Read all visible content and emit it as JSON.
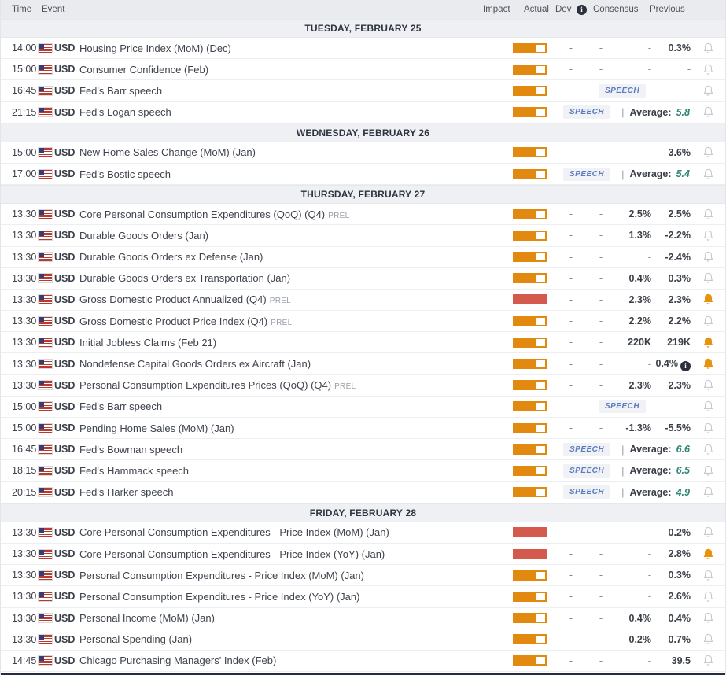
{
  "header": {
    "columns": {
      "time": "Time",
      "event": "Event",
      "impact": "Impact",
      "actual": "Actual",
      "dev": "Dev",
      "consensus": "Consensus",
      "previous": "Previous"
    },
    "dev_info_icon": "i"
  },
  "labels": {
    "currency": "USD",
    "speech": "SPEECH",
    "average": "Average:",
    "prel": "PREL",
    "pipe": "|",
    "dash": "-"
  },
  "colors": {
    "impact_medium": "#e2890f",
    "impact_high": "#d35a4d",
    "bell_inactive": "#c6cad0",
    "bell_active": "#e8930e",
    "speech_text": "#5b7cc0",
    "average_value": "#2f8577",
    "section_bg": "#eef0f3",
    "header_bg": "#e9ebee"
  },
  "sections": [
    {
      "title": "TUESDAY, FEBRUARY 25",
      "rows": [
        {
          "time": "14:00",
          "event": "Housing Price Index (MoM) (Dec)",
          "impact": "medium",
          "type": "values",
          "actual": "-",
          "dev": "-",
          "consensus": "-",
          "previous": "0.3%",
          "bell": "gray"
        },
        {
          "time": "15:00",
          "event": "Consumer Confidence (Feb)",
          "impact": "medium",
          "type": "values",
          "actual": "-",
          "dev": "-",
          "consensus": "-",
          "previous": "-",
          "bell": "gray"
        },
        {
          "time": "16:45",
          "event": "Fed's Barr speech",
          "impact": "medium",
          "type": "speech",
          "bell": "gray"
        },
        {
          "time": "21:15",
          "event": "Fed's Logan speech",
          "impact": "medium",
          "type": "speech_avg",
          "average": "5.8",
          "bell": "gray"
        }
      ]
    },
    {
      "title": "WEDNESDAY, FEBRUARY 26",
      "rows": [
        {
          "time": "15:00",
          "event": "New Home Sales Change (MoM) (Jan)",
          "impact": "medium",
          "type": "values",
          "actual": "-",
          "dev": "-",
          "consensus": "-",
          "previous": "3.6%",
          "bell": "gray"
        },
        {
          "time": "17:00",
          "event": "Fed's Bostic speech",
          "impact": "medium",
          "type": "speech_avg",
          "average": "5.4",
          "bell": "gray"
        }
      ]
    },
    {
      "title": "THURSDAY, FEBRUARY 27",
      "rows": [
        {
          "time": "13:30",
          "event": "Core Personal Consumption Expenditures (QoQ) (Q4)",
          "suffix": "PREL",
          "impact": "medium",
          "type": "values",
          "actual": "-",
          "dev": "-",
          "consensus": "2.5%",
          "previous": "2.5%",
          "bell": "gray"
        },
        {
          "time": "13:30",
          "event": "Durable Goods Orders (Jan)",
          "impact": "medium",
          "type": "values",
          "actual": "-",
          "dev": "-",
          "consensus": "1.3%",
          "previous": "-2.2%",
          "bell": "gray"
        },
        {
          "time": "13:30",
          "event": "Durable Goods Orders ex Defense (Jan)",
          "impact": "medium",
          "type": "values",
          "actual": "-",
          "dev": "-",
          "consensus": "-",
          "previous": "-2.4%",
          "bell": "gray"
        },
        {
          "time": "13:30",
          "event": "Durable Goods Orders ex Transportation (Jan)",
          "impact": "medium",
          "type": "values",
          "actual": "-",
          "dev": "-",
          "consensus": "0.4%",
          "previous": "0.3%",
          "bell": "gray"
        },
        {
          "time": "13:30",
          "event": "Gross Domestic Product Annualized (Q4)",
          "suffix": "PREL",
          "impact": "high",
          "type": "values",
          "actual": "-",
          "dev": "-",
          "consensus": "2.3%",
          "previous": "2.3%",
          "bell": "orange"
        },
        {
          "time": "13:30",
          "event": "Gross Domestic Product Price Index (Q4)",
          "suffix": "PREL",
          "impact": "medium",
          "type": "values",
          "actual": "-",
          "dev": "-",
          "consensus": "2.2%",
          "previous": "2.2%",
          "bell": "gray"
        },
        {
          "time": "13:30",
          "event": "Initial Jobless Claims (Feb 21)",
          "impact": "medium",
          "type": "values",
          "actual": "-",
          "dev": "-",
          "consensus": "220K",
          "previous": "219K",
          "bell": "orange"
        },
        {
          "time": "13:30",
          "event": "Nondefense Capital Goods Orders ex Aircraft (Jan)",
          "impact": "medium",
          "type": "values",
          "actual": "-",
          "dev": "-",
          "consensus": "-",
          "previous": "0.4%",
          "previous_info": true,
          "bell": "orange"
        },
        {
          "time": "13:30",
          "event": "Personal Consumption Expenditures Prices (QoQ) (Q4)",
          "suffix": "PREL",
          "impact": "medium",
          "type": "values",
          "actual": "-",
          "dev": "-",
          "consensus": "2.3%",
          "previous": "2.3%",
          "bell": "gray"
        },
        {
          "time": "15:00",
          "event": "Fed's Barr speech",
          "impact": "medium",
          "type": "speech",
          "bell": "gray"
        },
        {
          "time": "15:00",
          "event": "Pending Home Sales (MoM) (Jan)",
          "impact": "medium",
          "type": "values",
          "actual": "-",
          "dev": "-",
          "consensus": "-1.3%",
          "previous": "-5.5%",
          "bell": "gray"
        },
        {
          "time": "16:45",
          "event": "Fed's Bowman speech",
          "impact": "medium",
          "type": "speech_avg",
          "average": "6.6",
          "bell": "gray"
        },
        {
          "time": "18:15",
          "event": "Fed's Hammack speech",
          "impact": "medium",
          "type": "speech_avg",
          "average": "6.5",
          "bell": "gray"
        },
        {
          "time": "20:15",
          "event": "Fed's Harker speech",
          "impact": "medium",
          "type": "speech_avg",
          "average": "4.9",
          "bell": "gray"
        }
      ]
    },
    {
      "title": "FRIDAY, FEBRUARY 28",
      "rows": [
        {
          "time": "13:30",
          "event": "Core Personal Consumption Expenditures - Price Index (MoM) (Jan)",
          "impact": "high",
          "type": "values",
          "actual": "-",
          "dev": "-",
          "consensus": "-",
          "previous": "0.2%",
          "bell": "gray"
        },
        {
          "time": "13:30",
          "event": "Core Personal Consumption Expenditures - Price Index (YoY) (Jan)",
          "impact": "high",
          "type": "values",
          "actual": "-",
          "dev": "-",
          "consensus": "-",
          "previous": "2.8%",
          "bell": "orange"
        },
        {
          "time": "13:30",
          "event": "Personal Consumption Expenditures - Price Index (MoM) (Jan)",
          "impact": "medium",
          "type": "values",
          "actual": "-",
          "dev": "-",
          "consensus": "-",
          "previous": "0.3%",
          "bell": "gray"
        },
        {
          "time": "13:30",
          "event": "Personal Consumption Expenditures - Price Index (YoY) (Jan)",
          "impact": "medium",
          "type": "values",
          "actual": "-",
          "dev": "-",
          "consensus": "-",
          "previous": "2.6%",
          "bell": "gray"
        },
        {
          "time": "13:30",
          "event": "Personal Income (MoM) (Jan)",
          "impact": "medium",
          "type": "values",
          "actual": "-",
          "dev": "-",
          "consensus": "0.4%",
          "previous": "0.4%",
          "bell": "gray"
        },
        {
          "time": "13:30",
          "event": "Personal Spending (Jan)",
          "impact": "medium",
          "type": "values",
          "actual": "-",
          "dev": "-",
          "consensus": "0.2%",
          "previous": "0.7%",
          "bell": "gray"
        },
        {
          "time": "14:45",
          "event": "Chicago Purchasing Managers' Index (Feb)",
          "impact": "medium",
          "type": "values",
          "actual": "-",
          "dev": "-",
          "consensus": "-",
          "previous": "39.5",
          "bell": "gray"
        }
      ]
    }
  ]
}
